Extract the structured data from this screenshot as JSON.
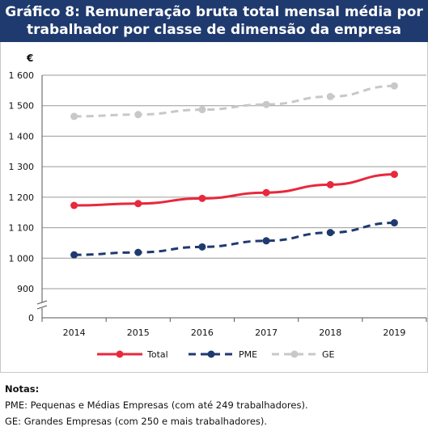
{
  "header": {
    "title_line1": "Gráfico 8: Remuneração bruta total mensal média por",
    "title_line2": "trabalhador por classe de dimensão da empresa"
  },
  "chart_data": {
    "type": "line",
    "title": "Gráfico 8: Remuneração bruta total mensal média por trabalhador por classe de dimensão da empresa",
    "ylabel": "€",
    "xlabel": "",
    "x": [
      "2014",
      "2015",
      "2016",
      "2017",
      "2018",
      "2019"
    ],
    "y_ticks": [
      "0",
      "900",
      "1 000",
      "1 100",
      "1 200",
      "1 300",
      "1 400",
      "1 500",
      "1 600"
    ],
    "ylim": [
      900,
      1600
    ],
    "axis_break": true,
    "grid": true,
    "legend_position": "bottom",
    "series": [
      {
        "name": "Total",
        "values": [
          1173,
          1179,
          1196,
          1215,
          1241,
          1275
        ],
        "color": "#e8283c",
        "dash": "solid"
      },
      {
        "name": "PME",
        "values": [
          1011,
          1019,
          1037,
          1057,
          1084,
          1116
        ],
        "color": "#1f3a6e",
        "dash": "dashed"
      },
      {
        "name": "GE",
        "values": [
          1465,
          1471,
          1487,
          1504,
          1530,
          1565
        ],
        "color": "#c8c8c8",
        "dash": "dashed"
      }
    ]
  },
  "notes": {
    "title": "Notas:",
    "lines": [
      "PME: Pequenas e Médias Empresas (com até 249 trabalhadores).",
      "GE: Grandes Empresas (com 250 e mais trabalhadores)."
    ]
  }
}
